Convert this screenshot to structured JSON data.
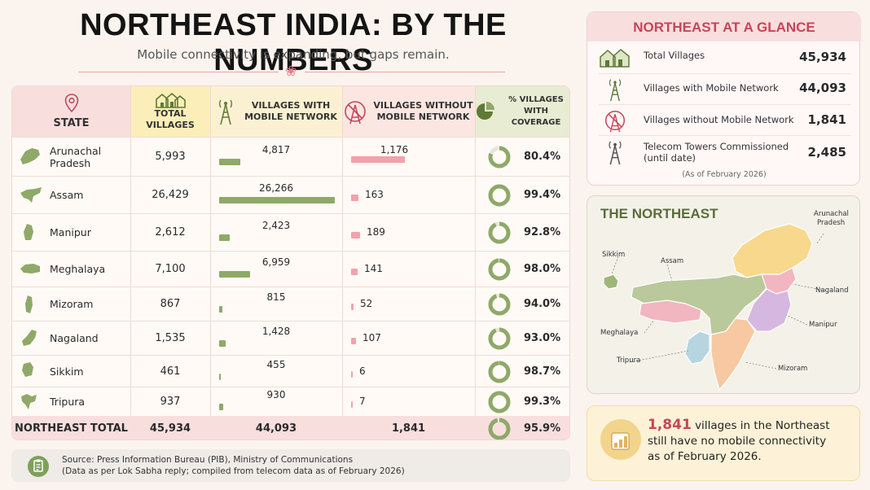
{
  "title": "NORTHEAST INDIA: BY THE NUMBERS",
  "subtitle": "Mobile connectivity is expanding, but gaps remain.",
  "table": {
    "headers": {
      "state": "STATE",
      "total_line1": "TOTAL",
      "total_line2": "VILLAGES",
      "with_line1": "VILLAGES WITH",
      "with_line2": "MOBILE NETWORK",
      "without_line1": "VILLAGES WITHOUT",
      "without_line2": "MOBILE NETWORK",
      "pct_line1": "% VILLAGES",
      "pct_line2": "WITH COVERAGE"
    },
    "rows": [
      {
        "state": "Arunachal Pradesh",
        "total": "5,993",
        "with": "4,817",
        "without": "1,176",
        "pct": "80.4%"
      },
      {
        "state": "Assam",
        "total": "26,429",
        "with": "26,266",
        "without": "163",
        "pct": "99.4%"
      },
      {
        "state": "Manipur",
        "total": "2,612",
        "with": "2,423",
        "without": "189",
        "pct": "92.8%"
      },
      {
        "state": "Meghalaya",
        "total": "7,100",
        "with": "6,959",
        "without": "141",
        "pct": "98.0%"
      },
      {
        "state": "Mizoram",
        "total": "867",
        "with": "815",
        "without": "52",
        "pct": "94.0%"
      },
      {
        "state": "Nagaland",
        "total": "1,535",
        "with": "1,428",
        "without": "107",
        "pct": "93.0%"
      },
      {
        "state": "Sikkim",
        "total": "461",
        "with": "455",
        "without": "6",
        "pct": "98.7%"
      },
      {
        "state": "Tripura",
        "total": "937",
        "with": "930",
        "without": "7",
        "pct": "99.3%"
      }
    ],
    "total_row": {
      "label": "NORTHEAST TOTAL",
      "total": "45,934",
      "with": "44,093",
      "without": "1,841",
      "pct": "95.9%"
    }
  },
  "source": {
    "line1": "Source: Press Information Bureau (PIB), Ministry of Communications",
    "line2": "(Data as per Lok Sabha reply; compiled from telecom data as of February 2026)"
  },
  "glance": {
    "title": "NORTHEAST AT A GLANCE",
    "items": [
      {
        "label": "Total Villages",
        "value": "45,934",
        "icon": "houses-icon"
      },
      {
        "label": "Villages with Mobile Network",
        "value": "44,093",
        "icon": "tower-icon"
      },
      {
        "label": "Villages without Mobile Network",
        "value": "1,841",
        "icon": "tower-blocked-icon"
      },
      {
        "label_line1": "Telecom Towers Commissioned",
        "label_line2": "(until date)",
        "value": "2,485",
        "icon": "tower-icon"
      }
    ],
    "as_of": "(As of February 2026)"
  },
  "map": {
    "title": "THE NORTHEAST",
    "labels": {
      "arunachal_line1": "Arunachal",
      "arunachal_line2": "Pradesh",
      "sikkim": "Sikkim",
      "assam": "Assam",
      "nagaland": "Nagaland",
      "manipur": "Manipur",
      "meghalaya": "Meghalaya",
      "tripura": "Tripura",
      "mizoram": "Mizoram"
    }
  },
  "callout": {
    "number": "1,841",
    "text_line1": " villages in the Northeast",
    "text_line2": "still have no mobile connectivity",
    "text_line3": "as of February 2026."
  },
  "colors": {
    "green": "#8ea968",
    "pink": "#f1a2ab",
    "accent": "#c4465a"
  },
  "chart_data": {
    "type": "table",
    "columns": [
      "STATE",
      "TOTAL VILLAGES",
      "VILLAGES WITH MOBILE NETWORK",
      "VILLAGES WITHOUT MOBILE NETWORK",
      "% VILLAGES WITH COVERAGE"
    ],
    "categories": [
      "Arunachal Pradesh",
      "Assam",
      "Manipur",
      "Meghalaya",
      "Mizoram",
      "Nagaland",
      "Sikkim",
      "Tripura"
    ],
    "series": [
      {
        "name": "TOTAL VILLAGES",
        "values": [
          5993,
          26429,
          2612,
          7100,
          867,
          1535,
          461,
          937
        ]
      },
      {
        "name": "VILLAGES WITH MOBILE NETWORK",
        "values": [
          4817,
          26266,
          2423,
          6959,
          815,
          1428,
          455,
          930
        ]
      },
      {
        "name": "VILLAGES WITHOUT MOBILE NETWORK",
        "values": [
          1176,
          163,
          189,
          141,
          52,
          107,
          6,
          7
        ]
      },
      {
        "name": "% VILLAGES WITH COVERAGE",
        "values": [
          80.4,
          99.4,
          92.8,
          98.0,
          94.0,
          93.0,
          98.7,
          99.3
        ]
      }
    ],
    "totals": {
      "TOTAL VILLAGES": 45934,
      "VILLAGES WITH MOBILE NETWORK": 44093,
      "VILLAGES WITHOUT MOBILE NETWORK": 1841,
      "% VILLAGES WITH COVERAGE": 95.9
    }
  }
}
